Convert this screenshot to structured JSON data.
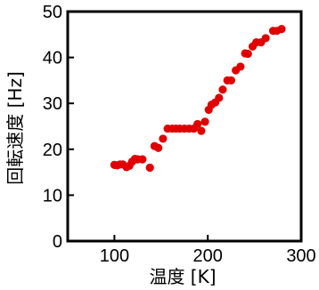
{
  "chart_data": {
    "type": "scatter",
    "xlabel": "温度 [K]",
    "ylabel": "回転速度 [Hz]",
    "xlim": [
      50,
      300
    ],
    "ylim": [
      0,
      50
    ],
    "x_ticks": [
      100,
      200,
      300
    ],
    "y_ticks": [
      0,
      10,
      20,
      30,
      40,
      50
    ],
    "grid": false,
    "marker_color": "#e00000",
    "x": [
      100,
      103,
      106,
      109,
      113,
      116,
      119,
      122,
      125,
      130,
      138,
      143,
      147,
      152,
      157,
      162,
      166,
      170,
      175,
      180,
      185,
      189,
      193,
      197,
      201,
      204,
      208,
      212,
      216,
      221,
      225,
      230,
      235,
      240,
      243,
      248,
      252,
      257,
      262,
      270,
      274,
      279
    ],
    "y": [
      16.6,
      16.5,
      16.7,
      16.7,
      16.1,
      16.4,
      17.3,
      17.9,
      17.8,
      17.8,
      16.0,
      20.7,
      20.3,
      22.3,
      24.5,
      24.5,
      24.5,
      24.5,
      24.5,
      24.5,
      24.5,
      25.5,
      24.0,
      26.0,
      28.6,
      29.7,
      30.2,
      31.2,
      33.0,
      35.0,
      35.0,
      37.2,
      38.0,
      40.9,
      40.8,
      42.4,
      43.3,
      43.3,
      44.2,
      45.8,
      45.8,
      46.2
    ]
  }
}
